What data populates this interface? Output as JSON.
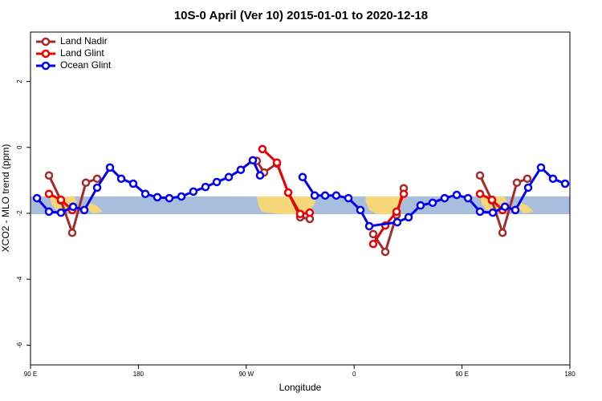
{
  "chart_data": {
    "type": "line",
    "title": "10S-0 April (Ver 10)   2015-01-01 to 2020-12-18",
    "x_label": "Longitude",
    "y_label": "XCO2 - MLO trend (ppm)",
    "xlim": [
      90,
      540
    ],
    "xticks": [
      {
        "value": 90,
        "label": "90 E"
      },
      {
        "value": 180,
        "label": "180"
      },
      {
        "value": 270,
        "label": "90 W"
      },
      {
        "value": 360,
        "label": "0"
      },
      {
        "value": 450,
        "label": "90 E"
      },
      {
        "value": 540,
        "label": "180"
      }
    ],
    "ylim": [
      -6.6,
      3.5
    ],
    "yticks": [
      -6,
      -4,
      -2,
      0,
      2
    ],
    "legend": "top-left",
    "series": [
      {
        "name": "Land Nadir",
        "color": "#a52a2a",
        "x": [
          105.4,
          115.4,
          124.8,
          136.2,
          145.6,
          null,
          278.8,
          284.9,
          295.6,
          305.0,
          315.0,
          323.0,
          null,
          375.9,
          386.0,
          395.4,
          401.4,
          null,
          465.0,
          475.0,
          483.8,
          495.8,
          504.5
        ],
        "values": [
          -0.85,
          -1.61,
          -2.59,
          -1.07,
          -0.95,
          null,
          -0.41,
          -0.76,
          -0.49,
          -1.37,
          -2.12,
          -2.17,
          null,
          -2.63,
          -3.17,
          -2.05,
          -1.24,
          null,
          -0.85,
          -1.61,
          -2.59,
          -1.07,
          -0.95
        ]
      },
      {
        "name": "Land Glint",
        "color": "#ee0000",
        "x": [
          105.4,
          115.4,
          124.8,
          null,
          283.5,
          295.6,
          305.0,
          315.0,
          323.0,
          null,
          375.9,
          386.0,
          395.4,
          401.4,
          null,
          465.0,
          475.0,
          483.8
        ],
        "values": [
          -1.41,
          -1.59,
          -1.9,
          null,
          -0.05,
          -0.46,
          -1.37,
          -2.02,
          -1.98,
          null,
          -2.93,
          -2.37,
          -1.95,
          -1.41,
          null,
          -1.41,
          -1.59,
          -1.9
        ]
      },
      {
        "name": "Ocean Glint",
        "color": "#0000ee",
        "x": [
          95.4,
          105.4,
          115.4,
          125.5,
          134.9,
          145.6,
          156.3,
          165.7,
          175.7,
          185.8,
          195.8,
          205.8,
          215.9,
          225.9,
          236.0,
          245.4,
          255.4,
          265.4,
          275.5,
          281.5,
          null,
          317.0,
          327.1,
          335.8,
          345.1,
          355.2,
          365.2,
          372.6,
          396.0,
          405.4,
          415.4,
          425.5,
          435.5,
          445.6,
          455.0,
          465.0,
          475.7,
          485.8,
          494.5,
          505.2,
          515.9,
          525.9,
          536.0
        ],
        "values": [
          -1.54,
          -1.95,
          -1.98,
          -1.8,
          -1.9,
          -1.22,
          -0.61,
          -0.95,
          -1.1,
          -1.41,
          -1.51,
          -1.54,
          -1.49,
          -1.34,
          -1.2,
          -1.05,
          -0.9,
          -0.68,
          -0.39,
          -0.85,
          null,
          -0.9,
          -1.46,
          -1.46,
          -1.46,
          -1.54,
          -1.9,
          -2.39,
          -2.27,
          -2.12,
          -1.76,
          -1.68,
          -1.54,
          -1.44,
          -1.54,
          -1.95,
          -1.98,
          -1.8,
          -1.9,
          -1.22,
          -0.61,
          -0.95,
          -1.1
        ]
      }
    ]
  }
}
